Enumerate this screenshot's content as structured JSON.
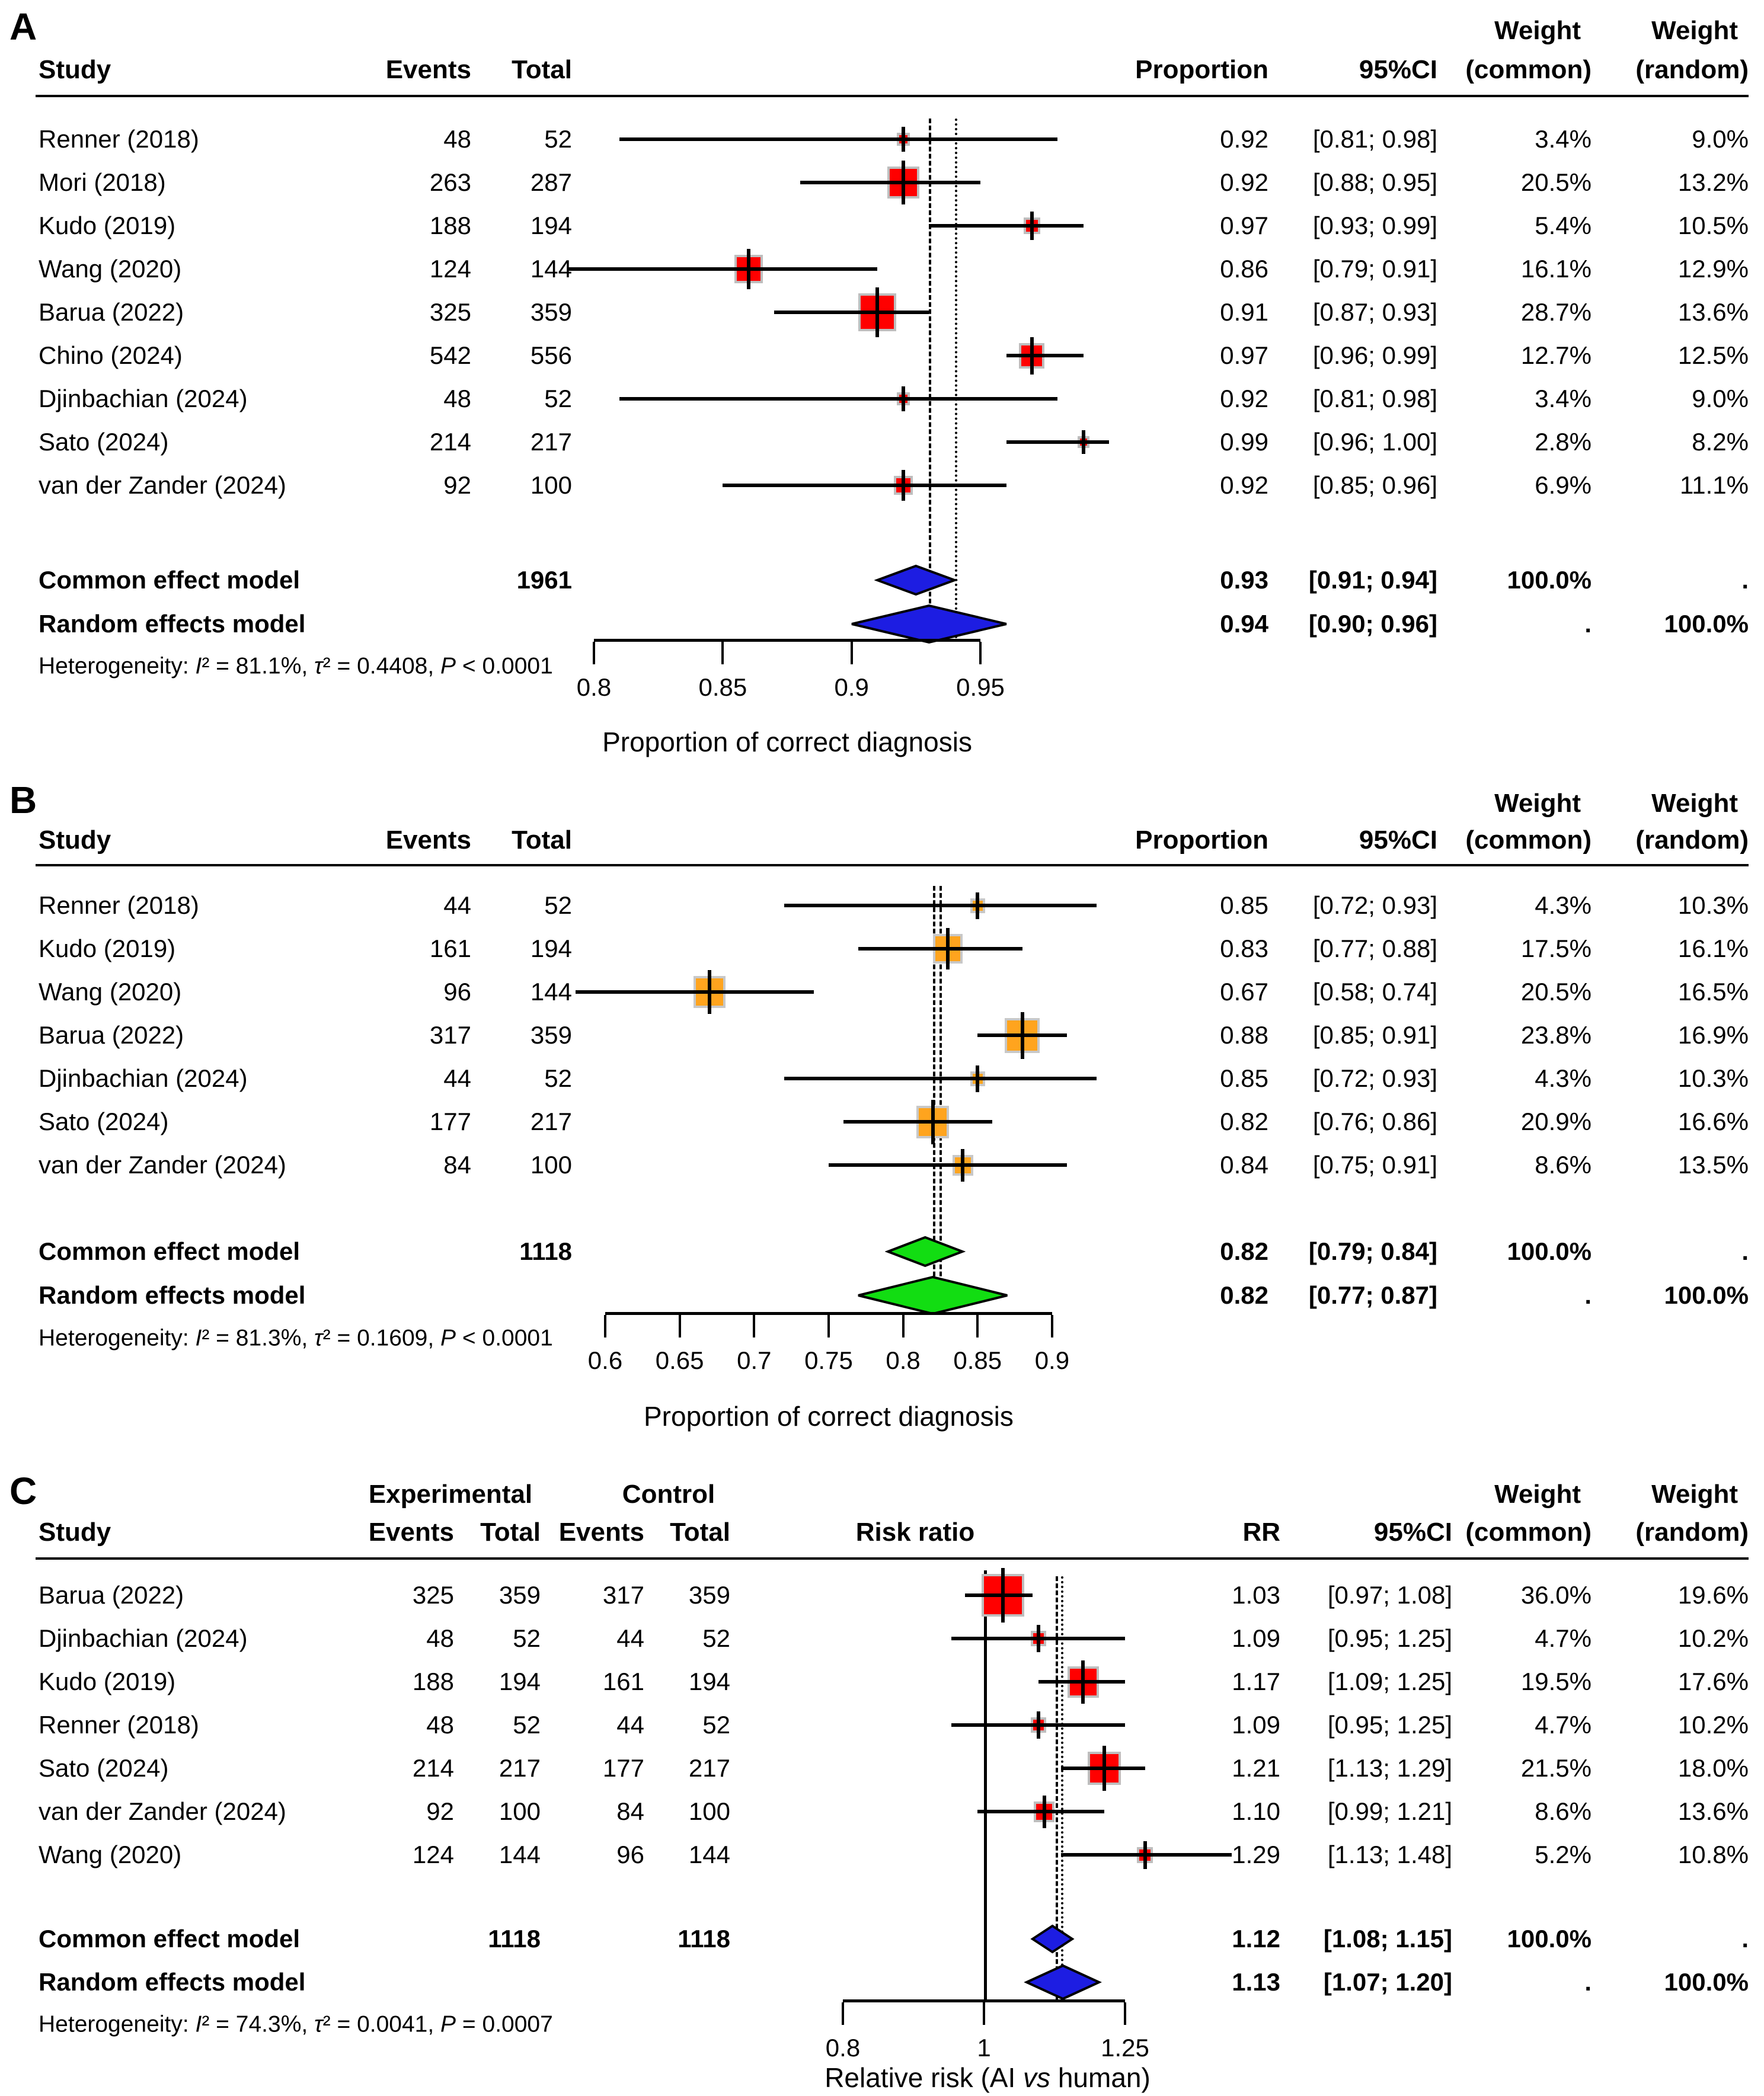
{
  "figure_title": "Forest plots meta-analysis",
  "background_color": "#FFFFFF",
  "chart_data": [
    {
      "id": "A",
      "label": "A",
      "type": "forest",
      "header": {
        "study": "Study",
        "events": "Events",
        "total": "Total",
        "value": "Proportion",
        "ci": "95%CI",
        "weight": "Weight",
        "common": "(common)",
        "random": "(random)"
      },
      "studies": [
        {
          "name": "Renner (2018)",
          "events": "48",
          "total": "52",
          "value": "0.92",
          "ci": "[0.81; 0.98]",
          "est": 0.92,
          "lo": 0.81,
          "hi": 0.98,
          "w_common": "3.4%",
          "w_random": "9.0%",
          "weight": 3.4
        },
        {
          "name": "Mori (2018)",
          "events": "263",
          "total": "287",
          "value": "0.92",
          "ci": "[0.88; 0.95]",
          "est": 0.92,
          "lo": 0.88,
          "hi": 0.95,
          "w_common": "20.5%",
          "w_random": "13.2%",
          "weight": 20.5
        },
        {
          "name": "Kudo (2019)",
          "events": "188",
          "total": "194",
          "value": "0.97",
          "ci": "[0.93; 0.99]",
          "est": 0.97,
          "lo": 0.93,
          "hi": 0.99,
          "w_common": "5.4%",
          "w_random": "10.5%",
          "weight": 5.4
        },
        {
          "name": "Wang (2020)",
          "events": "124",
          "total": "144",
          "value": "0.86",
          "ci": "[0.79; 0.91]",
          "est": 0.86,
          "lo": 0.79,
          "hi": 0.91,
          "w_common": "16.1%",
          "w_random": "12.9%",
          "weight": 16.1
        },
        {
          "name": "Barua (2022)",
          "events": "325",
          "total": "359",
          "value": "0.91",
          "ci": "[0.87; 0.93]",
          "est": 0.91,
          "lo": 0.87,
          "hi": 0.93,
          "w_common": "28.7%",
          "w_random": "13.6%",
          "weight": 28.7
        },
        {
          "name": "Chino (2024)",
          "events": "542",
          "total": "556",
          "value": "0.97",
          "ci": "[0.96; 0.99]",
          "est": 0.97,
          "lo": 0.96,
          "hi": 0.99,
          "w_common": "12.7%",
          "w_random": "12.5%",
          "weight": 12.7
        },
        {
          "name": "Djinbachian (2024)",
          "events": "48",
          "total": "52",
          "value": "0.92",
          "ci": "[0.81; 0.98]",
          "est": 0.92,
          "lo": 0.81,
          "hi": 0.98,
          "w_common": "3.4%",
          "w_random": "9.0%",
          "weight": 3.4
        },
        {
          "name": "Sato (2024)",
          "events": "214",
          "total": "217",
          "value": "0.99",
          "ci": "[0.96; 1.00]",
          "est": 0.99,
          "lo": 0.96,
          "hi": 1.0,
          "w_common": "2.8%",
          "w_random": "8.2%",
          "weight": 2.8
        },
        {
          "name": "van der Zander (2024)",
          "events": "92",
          "total": "100",
          "value": "0.92",
          "ci": "[0.85; 0.96]",
          "est": 0.92,
          "lo": 0.85,
          "hi": 0.96,
          "w_common": "6.9%",
          "w_random": "11.1%",
          "weight": 6.9
        }
      ],
      "common": {
        "label": "Common effect model",
        "total": "1961",
        "value": "0.93",
        "ci": "[0.91; 0.94]",
        "est": 0.93,
        "lo": 0.91,
        "hi": 0.94,
        "w_common": "100.0%",
        "w_random": "."
      },
      "random": {
        "label": "Random effects model",
        "value": "0.94",
        "ci": "[0.90; 0.96]",
        "est": 0.94,
        "lo": 0.9,
        "hi": 0.96,
        "w_common": ".",
        "w_random": "100.0%"
      },
      "heterogeneity": "Heterogeneity: I² = 81.1%, τ² = 0.4408, P < 0.0001",
      "axis": {
        "scale": "linear",
        "ticks": [
          0.8,
          0.85,
          0.9,
          0.95
        ],
        "tick_labels": [
          "0.8",
          "0.85",
          "0.9",
          "0.95"
        ],
        "title": "Proportion of correct diagnosis"
      },
      "refs": [
        {
          "value": 0.93,
          "style": "dashed"
        },
        {
          "value": 0.94,
          "style": "dotted"
        }
      ],
      "colors": {
        "square": "#FF0000",
        "square_border": "#BEBEBE",
        "diamond": "#1D1DE2"
      }
    },
    {
      "id": "B",
      "label": "B",
      "type": "forest",
      "header": {
        "study": "Study",
        "events": "Events",
        "total": "Total",
        "value": "Proportion",
        "ci": "95%CI",
        "weight": "Weight",
        "common": "(common)",
        "random": "(random)"
      },
      "studies": [
        {
          "name": "Renner (2018)",
          "events": "44",
          "total": "52",
          "value": "0.85",
          "ci": "[0.72; 0.93]",
          "est": 0.85,
          "lo": 0.72,
          "hi": 0.93,
          "w_common": "4.3%",
          "w_random": "10.3%",
          "weight": 4.3
        },
        {
          "name": "Kudo (2019)",
          "events": "161",
          "total": "194",
          "value": "0.83",
          "ci": "[0.77; 0.88]",
          "est": 0.83,
          "lo": 0.77,
          "hi": 0.88,
          "w_common": "17.5%",
          "w_random": "16.1%",
          "weight": 17.5
        },
        {
          "name": "Wang (2020)",
          "events": "96",
          "total": "144",
          "value": "0.67",
          "ci": "[0.58; 0.74]",
          "est": 0.67,
          "lo": 0.58,
          "hi": 0.74,
          "w_common": "20.5%",
          "w_random": "16.5%",
          "weight": 20.5
        },
        {
          "name": "Barua (2022)",
          "events": "317",
          "total": "359",
          "value": "0.88",
          "ci": "[0.85; 0.91]",
          "est": 0.88,
          "lo": 0.85,
          "hi": 0.91,
          "w_common": "23.8%",
          "w_random": "16.9%",
          "weight": 23.8
        },
        {
          "name": "Djinbachian (2024)",
          "events": "44",
          "total": "52",
          "value": "0.85",
          "ci": "[0.72; 0.93]",
          "est": 0.85,
          "lo": 0.72,
          "hi": 0.93,
          "w_common": "4.3%",
          "w_random": "10.3%",
          "weight": 4.3
        },
        {
          "name": "Sato (2024)",
          "events": "177",
          "total": "217",
          "value": "0.82",
          "ci": "[0.76; 0.86]",
          "est": 0.82,
          "lo": 0.76,
          "hi": 0.86,
          "w_common": "20.9%",
          "w_random": "16.6%",
          "weight": 20.9
        },
        {
          "name": "van der Zander (2024)",
          "events": "84",
          "total": "100",
          "value": "0.84",
          "ci": "[0.75; 0.91]",
          "est": 0.84,
          "lo": 0.75,
          "hi": 0.91,
          "w_common": "8.6%",
          "w_random": "13.5%",
          "weight": 8.6
        }
      ],
      "common": {
        "label": "Common effect model",
        "total": "1118",
        "value": "0.82",
        "ci": "[0.79; 0.84]",
        "est": 0.82,
        "lo": 0.79,
        "hi": 0.84,
        "w_common": "100.0%",
        "w_random": "."
      },
      "random": {
        "label": "Random effects model",
        "value": "0.82",
        "ci": "[0.77; 0.87]",
        "est": 0.82,
        "lo": 0.77,
        "hi": 0.87,
        "w_common": ".",
        "w_random": "100.0%"
      },
      "heterogeneity": "Heterogeneity: I² = 81.3%, τ² = 0.1609, P < 0.0001",
      "axis": {
        "scale": "linear",
        "ticks": [
          0.6,
          0.65,
          0.7,
          0.75,
          0.8,
          0.85,
          0.9
        ],
        "tick_labels": [
          "0.6",
          "0.65",
          "0.7",
          "0.75",
          "0.8",
          "0.85",
          "0.9"
        ],
        "title": "Proportion of correct diagnosis"
      },
      "refs": [
        {
          "value": 0.82,
          "style": "dashed"
        },
        {
          "value": 0.82,
          "style": "dashed"
        }
      ],
      "colors": {
        "square": "#FFA41E",
        "square_border": "#C8C8C8",
        "diamond": "#12DD12"
      }
    },
    {
      "id": "C",
      "label": "C",
      "type": "forest",
      "header": {
        "study": "Study",
        "group_experimental": "Experimental",
        "group_control": "Control",
        "events": "Events",
        "total": "Total",
        "events2": "Events",
        "total2": "Total",
        "plot": "Risk ratio",
        "value": "RR",
        "ci": "95%CI",
        "weight": "Weight",
        "common": "(common)",
        "random": "(random)"
      },
      "studies": [
        {
          "name": "Barua (2022)",
          "events": "325",
          "total": "359",
          "events2": "317",
          "total2": "359",
          "value": "1.03",
          "ci": "[0.97; 1.08]",
          "est": 1.03,
          "lo": 0.97,
          "hi": 1.08,
          "w_common": "36.0%",
          "w_random": "19.6%",
          "weight": 36.0
        },
        {
          "name": "Djinbachian (2024)",
          "events": "48",
          "total": "52",
          "events2": "44",
          "total2": "52",
          "value": "1.09",
          "ci": "[0.95; 1.25]",
          "est": 1.09,
          "lo": 0.95,
          "hi": 1.25,
          "w_common": "4.7%",
          "w_random": "10.2%",
          "weight": 4.7
        },
        {
          "name": "Kudo (2019)",
          "events": "188",
          "total": "194",
          "events2": "161",
          "total2": "194",
          "value": "1.17",
          "ci": "[1.09; 1.25]",
          "est": 1.17,
          "lo": 1.09,
          "hi": 1.25,
          "w_common": "19.5%",
          "w_random": "17.6%",
          "weight": 19.5
        },
        {
          "name": "Renner (2018)",
          "events": "48",
          "total": "52",
          "events2": "44",
          "total2": "52",
          "value": "1.09",
          "ci": "[0.95; 1.25]",
          "est": 1.09,
          "lo": 0.95,
          "hi": 1.25,
          "w_common": "4.7%",
          "w_random": "10.2%",
          "weight": 4.7
        },
        {
          "name": "Sato (2024)",
          "events": "214",
          "total": "217",
          "events2": "177",
          "total2": "217",
          "value": "1.21",
          "ci": "[1.13; 1.29]",
          "est": 1.21,
          "lo": 1.13,
          "hi": 1.29,
          "w_common": "21.5%",
          "w_random": "18.0%",
          "weight": 21.5
        },
        {
          "name": "van der Zander (2024)",
          "events": "92",
          "total": "100",
          "events2": "84",
          "total2": "100",
          "value": "1.10",
          "ci": "[0.99; 1.21]",
          "est": 1.1,
          "lo": 0.99,
          "hi": 1.21,
          "w_common": "8.6%",
          "w_random": "13.6%",
          "weight": 8.6
        },
        {
          "name": "Wang (2020)",
          "events": "124",
          "total": "144",
          "events2": "96",
          "total2": "144",
          "value": "1.29",
          "ci": "[1.13; 1.48]",
          "est": 1.29,
          "lo": 1.13,
          "hi": 1.48,
          "w_common": "5.2%",
          "w_random": "10.8%",
          "weight": 5.2
        }
      ],
      "common": {
        "label": "Common effect model",
        "total": "1118",
        "total2": "1118",
        "value": "1.12",
        "ci": "[1.08; 1.15]",
        "est": 1.12,
        "lo": 1.08,
        "hi": 1.15,
        "w_common": "100.0%",
        "w_random": "."
      },
      "random": {
        "label": "Random effects model",
        "value": "1.13",
        "ci": "[1.07; 1.20]",
        "est": 1.13,
        "lo": 1.07,
        "hi": 1.2,
        "w_common": ".",
        "w_random": "100.0%"
      },
      "heterogeneity": "Heterogeneity: I² = 74.3%, τ² = 0.0041, P = 0.0007",
      "axis": {
        "scale": "log",
        "ticks": [
          0.8,
          1,
          1.25
        ],
        "tick_labels": [
          "0.8",
          "1",
          "1.25"
        ],
        "title": "Relative risk (AI vs human)"
      },
      "null_line": 1,
      "refs": [
        {
          "value": 1.12,
          "style": "dashed"
        },
        {
          "value": 1.13,
          "style": "dotted"
        }
      ],
      "colors": {
        "square": "#FF0000",
        "square_border": "#BEBEBE",
        "diamond": "#1D1DE2"
      }
    }
  ]
}
